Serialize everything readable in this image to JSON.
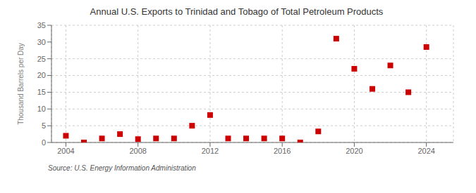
{
  "chart_data": {
    "type": "scatter",
    "title": "Annual U.S. Exports to Trinidad and Tobago of Total Petroleum Products",
    "ylabel": "Thousand Barrels per Day",
    "annotations": [
      "Source: U.S. Energy Information Administration"
    ],
    "x": [
      2004,
      2005,
      2006,
      2007,
      2008,
      2009,
      2010,
      2011,
      2012,
      2013,
      2014,
      2015,
      2016,
      2017,
      2018,
      2019,
      2020,
      2021,
      2022,
      2023,
      2024
    ],
    "values": [
      2.0,
      0.0,
      1.2,
      2.5,
      1.0,
      1.2,
      1.2,
      5.0,
      8.2,
      1.2,
      1.2,
      1.2,
      1.2,
      0.0,
      3.3,
      31.0,
      22.0,
      16.0,
      23.0,
      15.0,
      28.5
    ],
    "color": "#cc0000",
    "marker": "square",
    "xlim": [
      2003.2,
      2025.5
    ],
    "xticks": [
      2004,
      2008,
      2012,
      2016,
      2020,
      2024
    ],
    "ylim": [
      0,
      35
    ],
    "yticks": [
      0,
      5,
      10,
      15,
      20,
      25,
      30,
      35
    ],
    "grid": true
  }
}
